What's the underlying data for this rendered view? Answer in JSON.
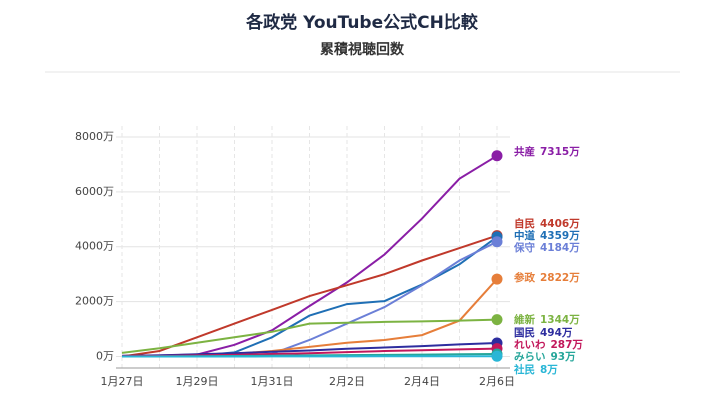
{
  "chart_data": {
    "type": "line",
    "title": "各政党 YouTube公式CH比較",
    "subtitle": "累積視聴回数",
    "categories": [
      "1月27日",
      null,
      "1月29日",
      null,
      "1月31日",
      null,
      "2月2日",
      null,
      "2月4日",
      null,
      "2月6日"
    ],
    "ylim": [
      -200,
      8400
    ],
    "yticks": [
      {
        "value": 0,
        "label": "0万"
      },
      {
        "value": 2000,
        "label": "2000万"
      },
      {
        "value": 4000,
        "label": "4000万"
      },
      {
        "value": 6000,
        "label": "6000万"
      },
      {
        "value": 8000,
        "label": "8000万"
      }
    ],
    "grid": true,
    "series": [
      {
        "name": "共産",
        "color": "#8a1ea6",
        "values": [
          30,
          40,
          70,
          425,
          955,
          1840,
          2700,
          3717,
          5026,
          6478,
          7315
        ],
        "value_labels": [
          null,
          null,
          null,
          null,
          null,
          null,
          null,
          null,
          null,
          null,
          "7315万"
        ]
      },
      {
        "name": "自民",
        "color": "#c0392b",
        "values": [
          0,
          200,
          700,
          1200,
          1700,
          2200,
          2600,
          3000,
          3500,
          3950,
          4406
        ],
        "value_labels": [
          null,
          null,
          null,
          null,
          null,
          null,
          null,
          null,
          null,
          null,
          "4406万"
        ]
      },
      {
        "name": "中道",
        "color": "#1f6fb5",
        "values": [
          0,
          0,
          30,
          150,
          700,
          1490,
          1910,
          2020,
          2620,
          3360,
          4359
        ],
        "value_labels": [
          null,
          null,
          null,
          null,
          null,
          null,
          null,
          null,
          null,
          null,
          "4359万"
        ]
      },
      {
        "name": "保守",
        "color": "#6b7fd7",
        "values": [
          0,
          0,
          0,
          20,
          100,
          600,
          1200,
          1800,
          2600,
          3500,
          4184
        ],
        "value_labels": [
          null,
          null,
          null,
          null,
          null,
          null,
          null,
          null,
          null,
          null,
          "4184万"
        ]
      },
      {
        "name": "参政",
        "color": "#e67e3a",
        "values": [
          0,
          30,
          60,
          100,
          200,
          350,
          500,
          600,
          780,
          1310,
          2822
        ],
        "value_labels": [
          null,
          null,
          null,
          null,
          null,
          null,
          null,
          null,
          null,
          null,
          "2822万"
        ]
      },
      {
        "name": "維新",
        "color": "#7cb342",
        "values": [
          130,
          300,
          500,
          700,
          900,
          1200,
          1230,
          1260,
          1280,
          1310,
          1344
        ],
        "value_labels": [
          null,
          null,
          null,
          null,
          null,
          null,
          null,
          null,
          null,
          null,
          "1344万"
        ]
      },
      {
        "name": "国民",
        "color": "#2d2d9f",
        "values": [
          20,
          40,
          80,
          120,
          170,
          220,
          280,
          330,
          380,
          440,
          494
        ],
        "value_labels": [
          null,
          null,
          null,
          null,
          null,
          null,
          null,
          null,
          null,
          null,
          "494万"
        ]
      },
      {
        "name": "れいわ",
        "color": "#c2185b",
        "values": [
          10,
          20,
          40,
          60,
          90,
          120,
          160,
          200,
          230,
          260,
          287
        ],
        "value_labels": [
          null,
          null,
          null,
          null,
          null,
          null,
          null,
          null,
          null,
          null,
          "287万"
        ]
      },
      {
        "name": "みらい",
        "color": "#26a69a",
        "values": [
          0,
          5,
          10,
          20,
          30,
          40,
          50,
          60,
          70,
          80,
          93
        ],
        "value_labels": [
          null,
          null,
          null,
          null,
          null,
          null,
          null,
          null,
          null,
          null,
          "93万"
        ]
      },
      {
        "name": "社民",
        "color": "#29b6d6",
        "values": [
          0,
          1,
          2,
          2,
          3,
          4,
          5,
          6,
          6,
          7,
          8
        ],
        "value_labels": [
          null,
          null,
          null,
          null,
          null,
          null,
          null,
          null,
          null,
          null,
          "8万"
        ]
      }
    ]
  }
}
